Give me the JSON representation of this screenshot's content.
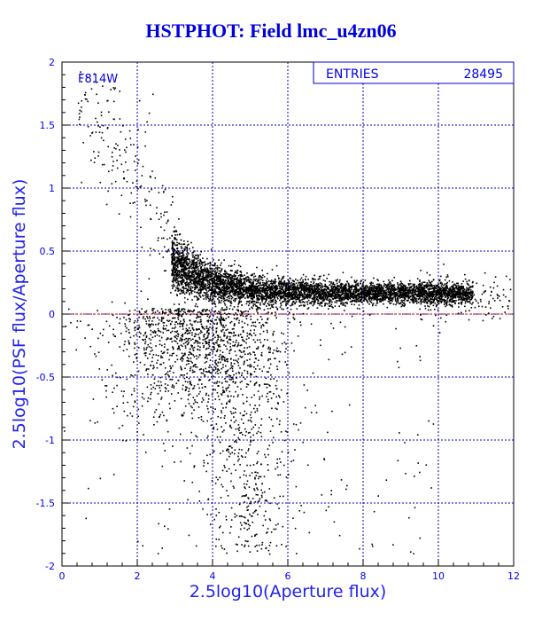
{
  "title": "HSTPHOT: Field lmc_u4zn06",
  "chart_data": {
    "type": "scatter",
    "title": "HSTPHOT: Field lmc_u4zn06",
    "xlabel": "2.5log10(Aperture flux)",
    "ylabel": "2.5log10(PSF flux/Aperture flux)",
    "xlim": [
      0,
      12
    ],
    "ylim": [
      -2,
      2
    ],
    "x_ticks": [
      "0",
      "2",
      "4",
      "6",
      "8",
      "10",
      "12"
    ],
    "y_ticks": [
      "-2",
      "-1.5",
      "-1",
      "-0.5",
      "0",
      "0.5",
      "1",
      "1.5",
      "2"
    ],
    "grid": true,
    "reference_line_y": 0,
    "filter_label": "F814W",
    "stats": {
      "label": "ENTRIES",
      "value": "28495"
    },
    "series": [
      {
        "name": "",
        "approximate_points": [
          [
            0.5,
            1.85
          ],
          [
            0.9,
            1.75
          ],
          [
            1.2,
            1.7
          ],
          [
            1.4,
            1.8
          ],
          [
            1.6,
            1.5
          ],
          [
            1.8,
            1.4
          ],
          [
            2.0,
            1.2
          ],
          [
            2.0,
            1.0
          ],
          [
            1.0,
            1.05
          ],
          [
            2.4,
            1.75
          ],
          [
            2.3,
            1.6
          ],
          [
            2.2,
            1.45
          ],
          [
            0.5,
            1.05
          ],
          [
            1.5,
            0.8
          ],
          [
            2.2,
            0.9
          ],
          [
            2.5,
            0.85
          ],
          [
            2.8,
            0.75
          ],
          [
            3.0,
            0.6
          ],
          [
            3.2,
            0.5
          ],
          [
            3.5,
            0.45
          ],
          [
            3.8,
            0.4
          ],
          [
            4.0,
            0.35
          ],
          [
            4.5,
            0.3
          ],
          [
            5.0,
            0.25
          ],
          [
            5.5,
            0.22
          ],
          [
            6.0,
            0.2
          ],
          [
            6.5,
            0.2
          ],
          [
            7.0,
            0.2
          ],
          [
            7.5,
            0.2
          ],
          [
            8.0,
            0.19
          ],
          [
            8.5,
            0.19
          ],
          [
            9.0,
            0.18
          ],
          [
            9.5,
            0.18
          ],
          [
            10.0,
            0.17
          ],
          [
            10.5,
            0.2
          ],
          [
            11.0,
            0.25
          ],
          [
            11.5,
            0.3
          ],
          [
            11.9,
            0.2
          ],
          [
            4.5,
            -0.5
          ],
          [
            4.8,
            -0.8
          ],
          [
            5.0,
            -1.0
          ],
          [
            5.2,
            -1.3
          ],
          [
            4.7,
            -1.6
          ],
          [
            4.9,
            -1.8
          ],
          [
            3.5,
            -1.2
          ],
          [
            3.2,
            -0.8
          ],
          [
            6.5,
            -0.6
          ],
          [
            7.5,
            -0.3
          ],
          [
            2.0,
            -1.8
          ],
          [
            1.0,
            -1.3
          ],
          [
            2.8,
            -1.7
          ],
          [
            5.5,
            -1.9
          ],
          [
            1.5,
            -0.9
          ],
          [
            1.3,
            -0.4
          ]
        ],
        "count": 28495
      }
    ]
  }
}
